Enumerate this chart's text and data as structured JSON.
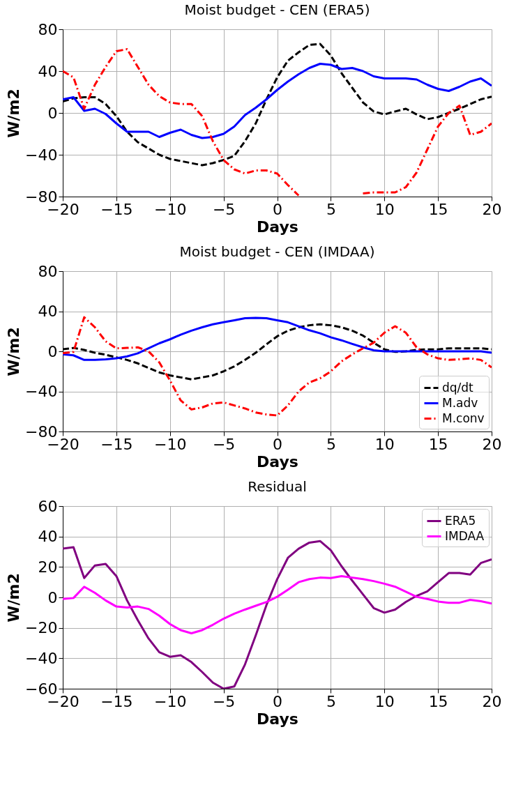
{
  "chart_data": [
    {
      "type": "line",
      "title": "Moist budget - CEN (ERA5)",
      "xlabel": "Days",
      "ylabel": "W/m2",
      "x": [
        -20,
        -19,
        -18,
        -17,
        -16,
        -15,
        -14,
        -13,
        -12,
        -11,
        -10,
        -9,
        -8,
        -7,
        -6,
        -5,
        -4,
        -3,
        -2,
        -1,
        0,
        1,
        2,
        3,
        4,
        5,
        6,
        7,
        8,
        9,
        10,
        11,
        12,
        13,
        14,
        15,
        16,
        17,
        18,
        19,
        20
      ],
      "xlim": [
        -20,
        20
      ],
      "xticks": [
        -20,
        -15,
        -10,
        -5,
        0,
        5,
        10,
        15,
        20
      ],
      "ylim": [
        -80,
        80
      ],
      "yticks": [
        -80,
        -40,
        0,
        40,
        80
      ],
      "grid": true,
      "legend": false,
      "series": [
        {
          "color": "#000000",
          "line_style": "dashed",
          "values": [
            11,
            14,
            15,
            15,
            8.5,
            -3,
            -18,
            -28,
            -34,
            -40,
            -44,
            -46,
            -48,
            -50,
            -48,
            -45,
            -41,
            -27,
            -10,
            13,
            34,
            50,
            58,
            65,
            66,
            55,
            38,
            24,
            10,
            1.4,
            -1.4,
            1.4,
            4,
            -1.4,
            -6,
            -4,
            0,
            4,
            8.5,
            13,
            15.6
          ]
        },
        {
          "color": "#0000ff",
          "line_style": "solid",
          "values": [
            13,
            15,
            2,
            4,
            -1,
            -10,
            -18,
            -18,
            -18,
            -23,
            -19,
            -16,
            -21,
            -24,
            -23,
            -20,
            -13,
            -2,
            5,
            13,
            22,
            30,
            37,
            43,
            47,
            46,
            42,
            43,
            40,
            35,
            33,
            33,
            33,
            32,
            27,
            23,
            21,
            25,
            30,
            33,
            26
          ]
        },
        {
          "color": "#ff0000",
          "line_style": "dashdot",
          "values": [
            40,
            34,
            4,
            27,
            44,
            59,
            61,
            44,
            27,
            16,
            10,
            8.5,
            8.5,
            -3,
            -27,
            -45,
            -54,
            -58,
            -55,
            -55,
            -58,
            -69,
            -79,
            null,
            null,
            null,
            null,
            null,
            -77,
            -76,
            -76,
            -76,
            -71,
            -57,
            -35,
            -13,
            0,
            7,
            -21,
            -18,
            -10
          ]
        }
      ]
    },
    {
      "type": "line",
      "title": "Moist budget - CEN (IMDAA)",
      "xlabel": "Days",
      "ylabel": "W/m2",
      "x": [
        -20,
        -19,
        -18,
        -17,
        -16,
        -15,
        -14,
        -13,
        -12,
        -11,
        -10,
        -9,
        -8,
        -7,
        -6,
        -5,
        -4,
        -3,
        -2,
        -1,
        0,
        1,
        2,
        3,
        4,
        5,
        6,
        7,
        8,
        9,
        10,
        11,
        12,
        13,
        14,
        15,
        16,
        17,
        18,
        19,
        20
      ],
      "xlim": [
        -20,
        20
      ],
      "xticks": [
        -20,
        -15,
        -10,
        -5,
        0,
        5,
        10,
        15,
        20
      ],
      "ylim": [
        -80,
        80
      ],
      "yticks": [
        -80,
        -40,
        0,
        40,
        80
      ],
      "grid": true,
      "legend": "bottom right",
      "series": [
        {
          "name": "dq/dt",
          "color": "#000000",
          "line_style": "dashed",
          "values": [
            2,
            3.4,
            1.4,
            -1.4,
            -3.4,
            -6,
            -8.6,
            -12,
            -16.6,
            -21,
            -24,
            -26,
            -28,
            -26,
            -24,
            -20,
            -15,
            -8.6,
            -1.4,
            7,
            15,
            20.6,
            24,
            26,
            27,
            26,
            24,
            20.6,
            15.7,
            8.6,
            2,
            -0.6,
            0,
            1.4,
            2,
            2,
            3,
            3,
            3,
            3,
            2
          ]
        },
        {
          "name": "M.adv",
          "color": "#0000ff",
          "line_style": "solid",
          "values": [
            -3,
            -4,
            -8.6,
            -8.6,
            -8,
            -7,
            -5,
            -2,
            3,
            8,
            12,
            16.6,
            20.6,
            24,
            27,
            29,
            31,
            33,
            33.4,
            33,
            31,
            29,
            25,
            21,
            18,
            14,
            11,
            7.4,
            4,
            1,
            0,
            0,
            0,
            0,
            0,
            0,
            0,
            0,
            0,
            0,
            -1.4
          ]
        },
        {
          "name": "M.conv",
          "color": "#ff0000",
          "line_style": "dashdot",
          "values": [
            -2,
            -0.6,
            34,
            24,
            10,
            3,
            3.4,
            4,
            0,
            -11,
            -29,
            -49,
            -58,
            -56,
            -52,
            -51,
            -54,
            -57,
            -61,
            -63,
            -64,
            -54,
            -40,
            -31,
            -27,
            -20,
            -10,
            -3,
            3,
            8.6,
            18.6,
            25,
            18.6,
            4,
            -3,
            -7,
            -8.6,
            -8,
            -7,
            -8.6,
            -16
          ]
        }
      ]
    },
    {
      "type": "line",
      "title": "Residual",
      "xlabel": "Days",
      "ylabel": "W/m2",
      "x": [
        -20,
        -19,
        -18,
        -17,
        -16,
        -15,
        -14,
        -13,
        -12,
        -11,
        -10,
        -9,
        -8,
        -7,
        -6,
        -5,
        -4,
        -3,
        -2,
        -1,
        0,
        1,
        2,
        3,
        4,
        5,
        6,
        7,
        8,
        9,
        10,
        11,
        12,
        13,
        14,
        15,
        16,
        17,
        18,
        19,
        20
      ],
      "xlim": [
        -20,
        20
      ],
      "xticks": [
        -20,
        -15,
        -10,
        -5,
        0,
        5,
        10,
        15,
        20
      ],
      "ylim": [
        -60,
        60
      ],
      "yticks": [
        -60,
        -40,
        -20,
        0,
        20,
        40,
        60
      ],
      "grid": true,
      "legend": "top right",
      "series": [
        {
          "name": "ERA5",
          "color": "#800080",
          "line_style": "solid",
          "values": [
            32,
            33,
            12.7,
            21,
            22,
            14,
            -2,
            -15,
            -27,
            -36,
            -39,
            -38,
            -42.5,
            -49,
            -56,
            -60,
            -58.5,
            -44,
            -25,
            -5,
            12,
            26,
            32,
            36,
            37,
            31,
            20.5,
            11,
            2,
            -7,
            -10,
            -8,
            -3,
            1,
            4,
            10,
            16,
            16,
            15,
            22.6,
            25
          ]
        },
        {
          "name": "IMDAA",
          "color": "#ff00ff",
          "line_style": "solid",
          "values": [
            -1,
            -0.4,
            7,
            3,
            -2,
            -6,
            -6.6,
            -6,
            -7.6,
            -12,
            -17.5,
            -21.5,
            -23.6,
            -21.5,
            -18,
            -14,
            -10.7,
            -8,
            -5.5,
            -3,
            0.4,
            5,
            10,
            12,
            13,
            12.7,
            14,
            13,
            12,
            10.7,
            9,
            7,
            3.7,
            0.4,
            -1,
            -2.7,
            -3.5,
            -3.5,
            -1.6,
            -2.5,
            -4
          ]
        }
      ]
    }
  ]
}
